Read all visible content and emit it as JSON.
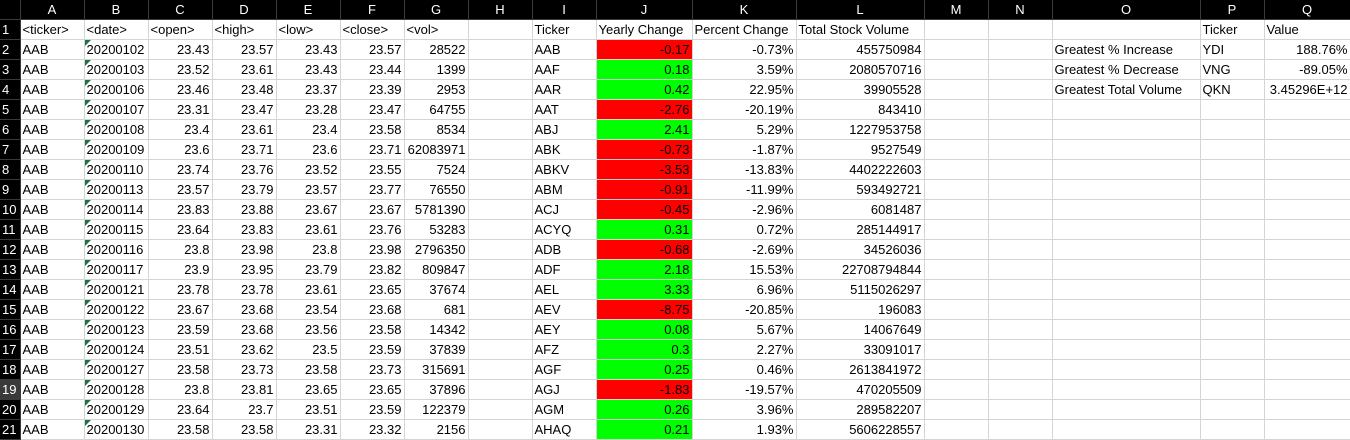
{
  "columns": [
    "A",
    "B",
    "C",
    "D",
    "E",
    "F",
    "G",
    "H",
    "I",
    "J",
    "K",
    "L",
    "M",
    "N",
    "O",
    "P",
    "Q"
  ],
  "highlight_colors": {
    "positive": "#00ff00",
    "negative": "#ff0000"
  },
  "rows": [
    {
      "n": "1",
      "c": [
        "<ticker>",
        "<date>",
        "<open>",
        "<high>",
        "<low>",
        "<close>",
        "<vol>",
        "",
        "Ticker",
        "Yearly Change",
        "Percent Change",
        "Total Stock Volume",
        "",
        "",
        "",
        "Ticker",
        "Value"
      ]
    },
    {
      "n": "2",
      "c": [
        "AAB",
        "20200102",
        "23.43",
        "23.57",
        "23.43",
        "23.57",
        "28522",
        "",
        "AAB",
        "-0.17",
        "-0.73%",
        "455750984",
        "",
        "",
        "Greatest % Increase",
        "YDI",
        "188.76%"
      ]
    },
    {
      "n": "3",
      "c": [
        "AAB",
        "20200103",
        "23.52",
        "23.61",
        "23.43",
        "23.44",
        "1399",
        "",
        "AAF",
        "0.18",
        "3.59%",
        "2080570716",
        "",
        "",
        "Greatest % Decrease",
        "VNG",
        "-89.05%"
      ]
    },
    {
      "n": "4",
      "c": [
        "AAB",
        "20200106",
        "23.46",
        "23.48",
        "23.37",
        "23.39",
        "2953",
        "",
        "AAR",
        "0.42",
        "22.95%",
        "39905528",
        "",
        "",
        "Greatest Total Volume",
        "QKN",
        "3.45296E+12"
      ]
    },
    {
      "n": "5",
      "c": [
        "AAB",
        "20200107",
        "23.31",
        "23.47",
        "23.28",
        "23.47",
        "64755",
        "",
        "AAT",
        "-2.76",
        "-20.19%",
        "843410",
        "",
        "",
        "",
        "",
        ""
      ]
    },
    {
      "n": "6",
      "c": [
        "AAB",
        "20200108",
        "23.4",
        "23.61",
        "23.4",
        "23.58",
        "8534",
        "",
        "ABJ",
        "2.41",
        "5.29%",
        "1227953758",
        "",
        "",
        "",
        "",
        ""
      ]
    },
    {
      "n": "7",
      "c": [
        "AAB",
        "20200109",
        "23.6",
        "23.71",
        "23.6",
        "23.71",
        "62083971",
        "",
        "ABK",
        "-0.73",
        "-1.87%",
        "9527549",
        "",
        "",
        "",
        "",
        ""
      ]
    },
    {
      "n": "8",
      "c": [
        "AAB",
        "20200110",
        "23.74",
        "23.76",
        "23.52",
        "23.55",
        "7524",
        "",
        "ABKV",
        "-3.53",
        "-13.83%",
        "4402222603",
        "",
        "",
        "",
        "",
        ""
      ]
    },
    {
      "n": "9",
      "c": [
        "AAB",
        "20200113",
        "23.57",
        "23.79",
        "23.57",
        "23.77",
        "76550",
        "",
        "ABM",
        "-0.91",
        "-11.99%",
        "593492721",
        "",
        "",
        "",
        "",
        ""
      ]
    },
    {
      "n": "10",
      "c": [
        "AAB",
        "20200114",
        "23.83",
        "23.88",
        "23.67",
        "23.67",
        "5781390",
        "",
        "ACJ",
        "-0.45",
        "-2.96%",
        "6081487",
        "",
        "",
        "",
        "",
        ""
      ]
    },
    {
      "n": "11",
      "c": [
        "AAB",
        "20200115",
        "23.64",
        "23.83",
        "23.61",
        "23.76",
        "53283",
        "",
        "ACYQ",
        "0.31",
        "0.72%",
        "285144917",
        "",
        "",
        "",
        "",
        ""
      ]
    },
    {
      "n": "12",
      "c": [
        "AAB",
        "20200116",
        "23.8",
        "23.98",
        "23.8",
        "23.98",
        "2796350",
        "",
        "ADB",
        "-0.68",
        "-2.69%",
        "34526036",
        "",
        "",
        "",
        "",
        ""
      ]
    },
    {
      "n": "13",
      "c": [
        "AAB",
        "20200117",
        "23.9",
        "23.95",
        "23.79",
        "23.82",
        "809847",
        "",
        "ADF",
        "2.18",
        "15.53%",
        "22708794844",
        "",
        "",
        "",
        "",
        ""
      ]
    },
    {
      "n": "14",
      "c": [
        "AAB",
        "20200121",
        "23.78",
        "23.78",
        "23.61",
        "23.65",
        "37674",
        "",
        "AEL",
        "3.33",
        "6.96%",
        "5115026297",
        "",
        "",
        "",
        "",
        ""
      ]
    },
    {
      "n": "15",
      "c": [
        "AAB",
        "20200122",
        "23.67",
        "23.68",
        "23.54",
        "23.68",
        "681",
        "",
        "AEV",
        "-8.75",
        "-20.85%",
        "196083",
        "",
        "",
        "",
        "",
        ""
      ]
    },
    {
      "n": "16",
      "c": [
        "AAB",
        "20200123",
        "23.59",
        "23.68",
        "23.56",
        "23.58",
        "14342",
        "",
        "AEY",
        "0.08",
        "5.67%",
        "14067649",
        "",
        "",
        "",
        "",
        ""
      ]
    },
    {
      "n": "17",
      "c": [
        "AAB",
        "20200124",
        "23.51",
        "23.62",
        "23.5",
        "23.59",
        "37839",
        "",
        "AFZ",
        "0.3",
        "2.27%",
        "33091017",
        "",
        "",
        "",
        "",
        ""
      ]
    },
    {
      "n": "18",
      "c": [
        "AAB",
        "20200127",
        "23.58",
        "23.73",
        "23.58",
        "23.73",
        "315691",
        "",
        "AGF",
        "0.25",
        "0.46%",
        "2613841972",
        "",
        "",
        "",
        "",
        ""
      ]
    },
    {
      "n": "19",
      "c": [
        "AAB",
        "20200128",
        "23.8",
        "23.81",
        "23.65",
        "23.65",
        "37896",
        "",
        "AGJ",
        "-1.83",
        "-19.57%",
        "470205509",
        "",
        "",
        "",
        "",
        ""
      ]
    },
    {
      "n": "20",
      "c": [
        "AAB",
        "20200129",
        "23.64",
        "23.7",
        "23.51",
        "23.59",
        "122379",
        "",
        "AGM",
        "0.26",
        "3.96%",
        "289582207",
        "",
        "",
        "",
        "",
        ""
      ]
    },
    {
      "n": "21",
      "c": [
        "AAB",
        "20200130",
        "23.58",
        "23.58",
        "23.31",
        "23.32",
        "2156",
        "",
        "AHAQ",
        "0.21",
        "1.93%",
        "5606228557",
        "",
        "",
        "",
        "",
        ""
      ]
    }
  ]
}
